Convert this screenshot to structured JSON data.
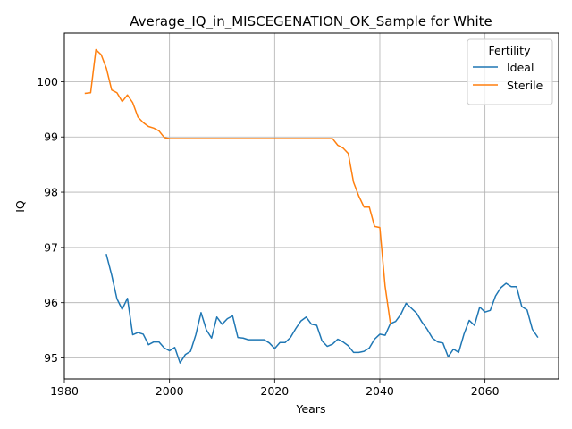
{
  "chart_data": {
    "type": "line",
    "title": "Average_IQ_in_MISCEGENATION_OK_Sample for White",
    "xlabel": "Years",
    "ylabel": "IQ",
    "xlim": [
      1980,
      2074
    ],
    "ylim": [
      94.62,
      100.88
    ],
    "xticks": [
      1980,
      2000,
      2020,
      2040,
      2060
    ],
    "yticks": [
      95,
      96,
      97,
      98,
      99,
      100
    ],
    "grid": true,
    "legend": {
      "title": "Fertility",
      "placement": "top-right"
    },
    "series": [
      {
        "name": "Ideal",
        "color": "#1f77b4",
        "x": [
          1988,
          1989,
          1990,
          1991,
          1992,
          1993,
          1994,
          1995,
          1996,
          1997,
          1998,
          1999,
          2000,
          2001,
          2002,
          2003,
          2004,
          2005,
          2006,
          2007,
          2008,
          2009,
          2010,
          2011,
          2012,
          2013,
          2014,
          2015,
          2016,
          2017,
          2018,
          2019,
          2020,
          2021,
          2022,
          2023,
          2024,
          2025,
          2026,
          2027,
          2028,
          2029,
          2030,
          2031,
          2032,
          2033,
          2034,
          2035,
          2036,
          2037,
          2038,
          2039,
          2040,
          2041,
          2042,
          2043,
          2044,
          2045,
          2046,
          2047,
          2048,
          2049,
          2050,
          2051,
          2052,
          2053,
          2054,
          2055,
          2056,
          2057,
          2058,
          2059,
          2060,
          2061,
          2062,
          2063,
          2064,
          2065,
          2066,
          2067,
          2068,
          2069,
          2070
        ],
        "y": [
          96.87,
          96.5,
          96.07,
          95.88,
          96.08,
          95.42,
          95.46,
          95.43,
          95.24,
          95.29,
          95.29,
          95.18,
          95.13,
          95.19,
          94.91,
          95.06,
          95.12,
          95.42,
          95.82,
          95.51,
          95.36,
          95.74,
          95.61,
          95.71,
          95.76,
          95.37,
          95.36,
          95.33,
          95.33,
          95.33,
          95.33,
          95.27,
          95.17,
          95.28,
          95.28,
          95.37,
          95.53,
          95.67,
          95.74,
          95.61,
          95.59,
          95.31,
          95.21,
          95.25,
          95.34,
          95.29,
          95.22,
          95.1,
          95.1,
          95.12,
          95.18,
          95.34,
          95.43,
          95.41,
          95.62,
          95.66,
          95.79,
          95.99,
          95.9,
          95.81,
          95.65,
          95.52,
          95.36,
          95.29,
          95.27,
          95.02,
          95.16,
          95.1,
          95.43,
          95.68,
          95.59,
          95.92,
          95.83,
          95.86,
          96.12,
          96.27,
          96.35,
          96.29,
          96.29,
          95.93,
          95.87,
          95.52,
          95.38
        ]
      },
      {
        "name": "Sterile",
        "color": "#ff7f0e",
        "x": [
          1984,
          1985,
          1986,
          1987,
          1988,
          1989,
          1990,
          1991,
          1992,
          1993,
          1994,
          1995,
          1996,
          1997,
          1998,
          1999,
          2000,
          2005,
          2010,
          2015,
          2020,
          2025,
          2030,
          2031,
          2032,
          2033,
          2034,
          2035,
          2036,
          2037,
          2038,
          2039,
          2040,
          2041,
          2042
        ],
        "y": [
          99.79,
          99.8,
          100.58,
          100.49,
          100.24,
          99.85,
          99.8,
          99.64,
          99.76,
          99.62,
          99.36,
          99.26,
          99.19,
          99.16,
          99.11,
          98.99,
          98.97,
          98.97,
          98.97,
          98.97,
          98.97,
          98.97,
          98.97,
          98.97,
          98.85,
          98.8,
          98.7,
          98.18,
          97.93,
          97.73,
          97.73,
          97.38,
          97.36,
          96.3,
          95.63
        ]
      }
    ]
  }
}
